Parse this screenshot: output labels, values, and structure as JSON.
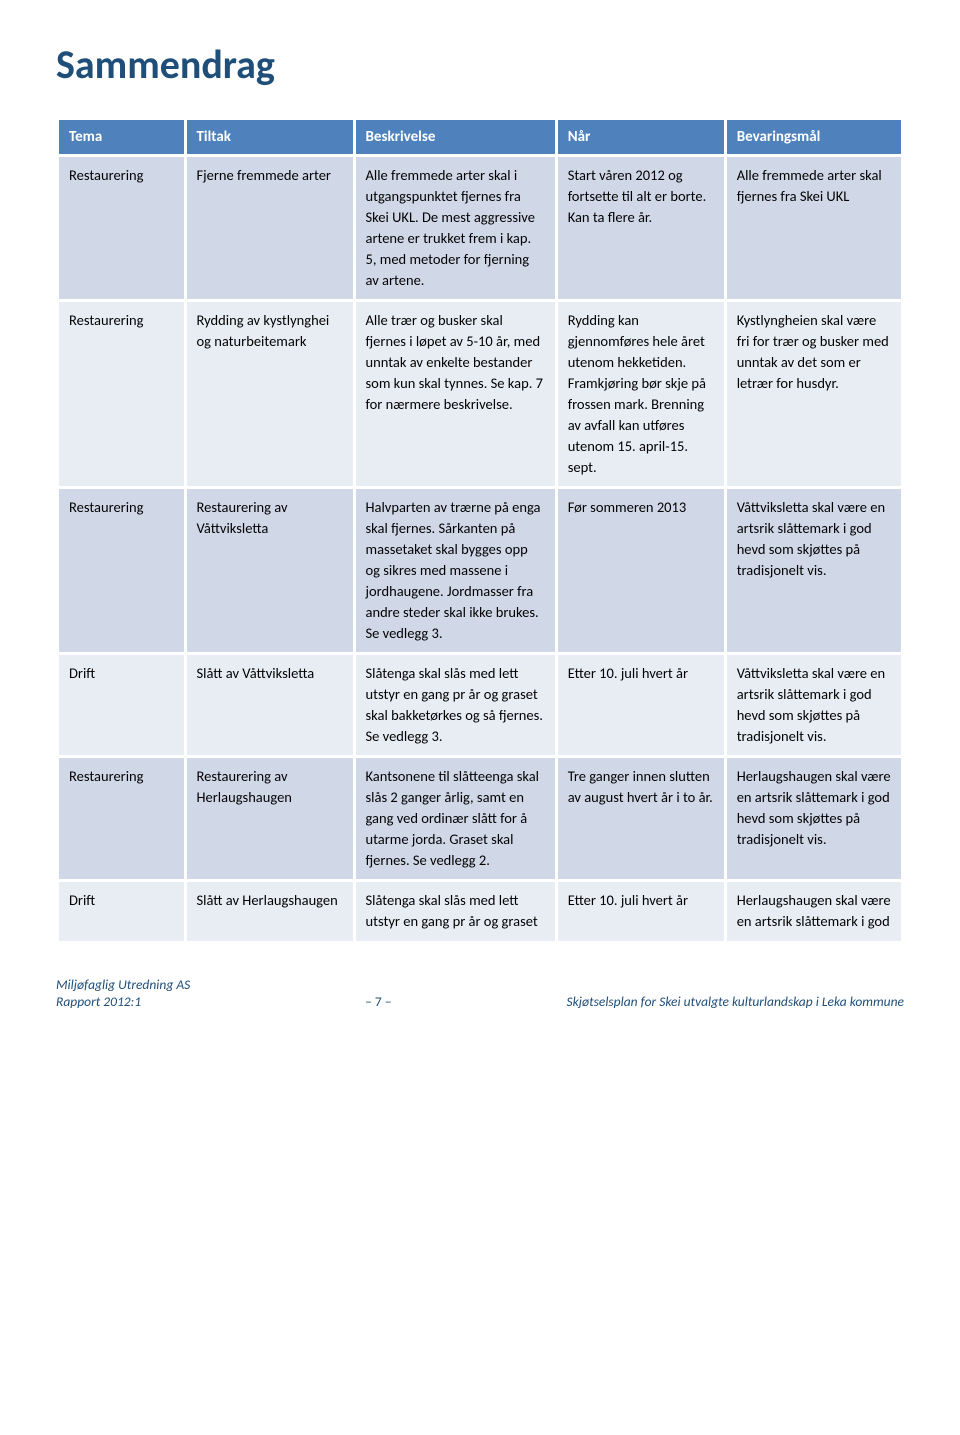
{
  "title": "Sammendrag",
  "columns": [
    "Tema",
    "Tiltak",
    "Beskrivelse",
    "Når",
    "Bevaringsmål"
  ],
  "rows": [
    {
      "tema": "Restaurering",
      "tiltak": "Fjerne fremmede arter",
      "beskrivelse": "Alle fremmede arter skal i utgangspunktet fjernes fra Skei UKL. De mest aggressive artene er trukket frem i kap. 5, med metoder for fjerning av artene.",
      "nar": "Start våren 2012 og fortsette til alt er borte. Kan ta flere år.",
      "mal": "Alle fremmede arter skal fjernes fra Skei UKL"
    },
    {
      "tema": "Restaurering",
      "tiltak": "Rydding av kystlynghei og naturbeitemark",
      "beskrivelse": "Alle trær og busker skal fjernes i løpet av 5-10 år, med unntak av enkelte bestander som kun skal tynnes. Se kap. 7 for nærmere beskrivelse.",
      "nar": "Rydding kan gjennomføres hele året utenom hekketiden. Framkjøring bør skje på frossen mark. Brenning av avfall kan utføres utenom 15. april-15. sept.",
      "mal": "Kystlyngheien skal være fri for trær og busker med unntak av det som er letrær for husdyr."
    },
    {
      "tema": "Restaurering",
      "tiltak": "Restaurering av Våttviksletta",
      "beskrivelse": "Halvparten av trærne på enga skal fjernes. Sårkanten på massetaket skal bygges opp og sikres med massene i jordhaugene. Jordmasser fra andre steder skal ikke brukes. Se vedlegg 3.",
      "nar": "Før sommeren 2013",
      "mal": "Våttviksletta skal være en artsrik slåttemark i god hevd som skjøttes på tradisjonelt vis."
    },
    {
      "tema": "Drift",
      "tiltak": "Slått av Våttviksletta",
      "beskrivelse": "Slåtenga skal slås med lett utstyr en gang pr år og graset skal bakketørkes og så fjernes. Se vedlegg 3.",
      "nar": "Etter 10. juli hvert år",
      "mal": "Våttviksletta skal være en artsrik slåttemark i god hevd som skjøttes på tradisjonelt vis."
    },
    {
      "tema": "Restaurering",
      "tiltak": "Restaurering av Herlaugshaugen",
      "beskrivelse": "Kantsonene til slåtteenga skal slås 2 ganger årlig, samt en gang ved ordinær slått for å utarme jorda. Graset skal fjernes. Se vedlegg 2.",
      "nar": "Tre ganger innen slutten av august hvert år i to år.",
      "mal": "Herlaugshaugen skal være en artsrik slåttemark i god hevd som skjøttes på tradisjonelt vis."
    },
    {
      "tema": "Drift",
      "tiltak": "Slått av Herlaugshaugen",
      "beskrivelse": "Slåtenga skal slås med lett utstyr en gang pr år og graset",
      "nar": "Etter 10. juli hvert år",
      "mal": "Herlaugshaugen skal være en artsrik slåttemark i god"
    }
  ],
  "footer": {
    "left_line1": "Miljøfaglig Utredning AS",
    "left_line2": "Rapport 2012:1",
    "center": "– 7 –",
    "right": "Skjøtselsplan for Skei utvalgte kulturlandskap i Leka kommune"
  },
  "colors": {
    "title": "#1f4e79",
    "header_bg": "#4f81bd",
    "row_odd": "#d0d8e8",
    "row_even": "#e8edf4",
    "footer_text": "#1f4e79"
  }
}
